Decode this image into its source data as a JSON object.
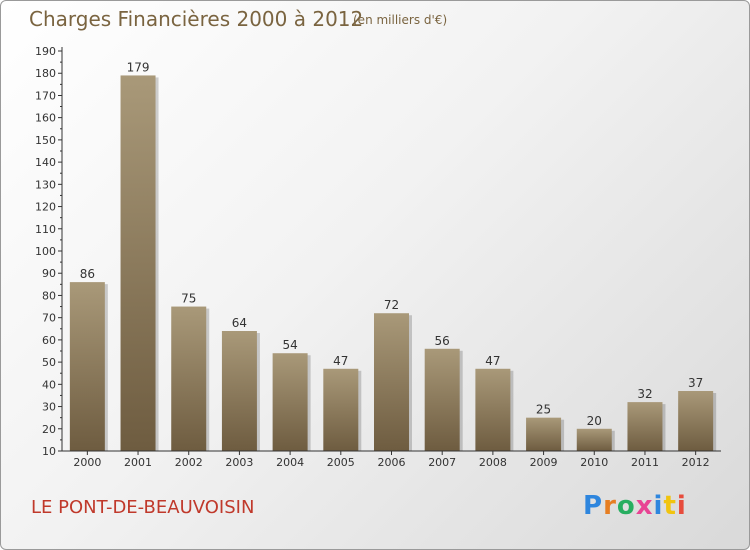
{
  "header": {
    "title": "Charges Financières 2000 à 2012",
    "unit": "(en milliers d'€)"
  },
  "footer": {
    "commune": "LE PONT-DE-BEAUVOISIN",
    "logo": "Proxiti",
    "logo_letter_colors": [
      "#2e86de",
      "#e67e22",
      "#27ae60",
      "#e84393",
      "#2e86de",
      "#f1c40f",
      "#e74c3c"
    ]
  },
  "colors": {
    "bar_top": "#a99979",
    "bar_bottom": "#6e5c40",
    "axis": "#333333",
    "grid": "#cfcfcf"
  },
  "chart_data": {
    "type": "bar",
    "title": "Charges Financières 2000 à 2012",
    "subtitle": "(en milliers d'€)",
    "categories": [
      "2000",
      "2001",
      "2002",
      "2003",
      "2004",
      "2005",
      "2006",
      "2007",
      "2008",
      "2009",
      "2010",
      "2011",
      "2012"
    ],
    "values": [
      86,
      179,
      75,
      64,
      54,
      47,
      72,
      56,
      47,
      25,
      20,
      32,
      37
    ],
    "ylim": [
      10,
      190
    ],
    "yticks": [
      10,
      20,
      30,
      40,
      50,
      60,
      70,
      80,
      90,
      100,
      110,
      120,
      130,
      140,
      150,
      160,
      170,
      180,
      190
    ],
    "grid": false,
    "legend": "none",
    "data_labels": true
  }
}
